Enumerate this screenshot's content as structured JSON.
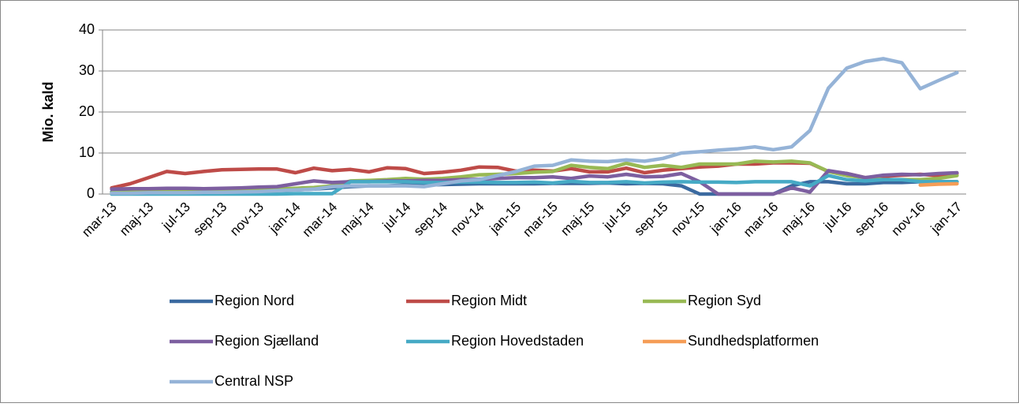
{
  "chart_data": {
    "type": "line",
    "y_label": "Mio. kald",
    "categories": [
      "mar-13",
      null,
      "maj-13",
      null,
      "jul-13",
      null,
      "sep-13",
      null,
      "nov-13",
      null,
      "jan-14",
      null,
      "mar-14",
      null,
      "maj-14",
      null,
      "jul-14",
      null,
      "sep-14",
      null,
      "nov-14",
      null,
      "jan-15",
      null,
      "mar-15",
      null,
      "maj-15",
      null,
      "jul-15",
      null,
      "sep-15",
      null,
      "nov-15",
      null,
      "jan-16",
      null,
      "mar-16",
      null,
      "maj-16",
      null,
      "jul-16",
      null,
      "sep-16",
      null,
      "nov-16",
      null,
      "jan-17"
    ],
    "ylim": [
      0,
      40
    ],
    "yticks": [
      0,
      10,
      20,
      30,
      40
    ],
    "grid": true,
    "series": [
      {
        "name": "Region Nord",
        "color": "#3b6aa0",
        "values": [
          0.5,
          0.5,
          0.6,
          0.6,
          0.6,
          0.7,
          0.7,
          0.8,
          0.8,
          0.9,
          1,
          1.2,
          1.5,
          1.8,
          2,
          2,
          2.2,
          2.2,
          2.3,
          2.4,
          2.5,
          2.5,
          2.5,
          2.5,
          2.6,
          2.6,
          2.6,
          2.7,
          2.5,
          2.6,
          2.5,
          2,
          0,
          0,
          0,
          0,
          0,
          2,
          3,
          3,
          2.5,
          2.5,
          2.8,
          2.8,
          3,
          3,
          3
        ]
      },
      {
        "name": "Region Midt",
        "color": "#be4b48",
        "values": [
          1.5,
          2.5,
          4,
          5.5,
          5,
          5.5,
          5.9,
          6,
          6.1,
          6.1,
          5.2,
          6.3,
          5.7,
          6,
          5.4,
          6.4,
          6.2,
          5,
          5.3,
          5.8,
          6.6,
          6.5,
          5.6,
          5.8,
          5.6,
          6.2,
          5.4,
          5.4,
          6.3,
          5.2,
          5.8,
          6.2,
          6.6,
          6.8,
          7.3,
          7.3,
          7.6,
          7.6,
          7.5,
          5.5,
          5,
          4,
          4.3,
          4.6,
          4.8,
          4.5,
          5
        ]
      },
      {
        "name": "Region Syd",
        "color": "#98b954",
        "values": [
          0.3,
          0.4,
          0.5,
          0.6,
          0.7,
          0.8,
          0.9,
          1,
          1.1,
          1.2,
          1.4,
          1.6,
          2,
          3.2,
          3.3,
          3.5,
          3.8,
          3.6,
          3.8,
          4.2,
          4.7,
          4.8,
          5,
          5.3,
          5.5,
          7,
          6.5,
          6.2,
          7.5,
          6.5,
          7,
          6.5,
          7.3,
          7.3,
          7.3,
          8,
          7.8,
          8,
          7.6,
          5.5,
          4.5,
          4,
          3.5,
          3.5,
          3.5,
          3.8,
          4.5
        ]
      },
      {
        "name": "Region Sjælland",
        "color": "#7d5fa0",
        "values": [
          1.2,
          1.3,
          1.3,
          1.4,
          1.4,
          1.3,
          1.4,
          1.5,
          1.7,
          1.8,
          2.5,
          3.2,
          2.8,
          3,
          3,
          3.2,
          3.2,
          3.3,
          3.3,
          3.5,
          3.6,
          3.8,
          4,
          4,
          4.2,
          3.8,
          4.4,
          4.2,
          4.8,
          4.2,
          4.3,
          5,
          3,
          0,
          0,
          0,
          0,
          1.5,
          0.5,
          5.7,
          5,
          4,
          4.6,
          4.8,
          4.7,
          5,
          5.2
        ]
      },
      {
        "name": "Region Hovedstaden",
        "color": "#46aac5",
        "values": [
          0,
          0,
          0,
          0,
          0,
          0,
          0,
          0,
          0,
          0,
          0.1,
          0.1,
          0.1,
          3,
          3,
          3,
          3,
          2.8,
          2.8,
          2.9,
          2.9,
          2.8,
          2.8,
          2.9,
          2.7,
          3.1,
          2.8,
          2.8,
          3,
          2.7,
          2.9,
          3,
          2.9,
          2.9,
          2.8,
          3,
          3,
          3,
          2,
          4.5,
          3.5,
          3.2,
          3.5,
          3.5,
          3,
          3,
          3
        ]
      },
      {
        "name": "Sundhedsplatformen",
        "color": "#f59d56",
        "values": [
          null,
          null,
          null,
          null,
          null,
          null,
          null,
          null,
          null,
          null,
          null,
          null,
          null,
          null,
          null,
          null,
          null,
          null,
          null,
          null,
          null,
          null,
          null,
          null,
          null,
          null,
          null,
          null,
          null,
          null,
          null,
          null,
          null,
          null,
          null,
          null,
          null,
          null,
          null,
          null,
          null,
          null,
          null,
          null,
          2.2,
          2.4,
          2.5
        ]
      },
      {
        "name": "Central NSP",
        "color": "#95b3d7",
        "values": [
          0.2,
          0.2,
          0.3,
          0.3,
          0.3,
          0.4,
          0.4,
          0.5,
          0.6,
          0.8,
          1,
          1.2,
          1.8,
          2,
          2,
          2,
          2,
          1.8,
          2.5,
          3.2,
          3.5,
          4.5,
          5.5,
          6.8,
          7,
          8.3,
          8,
          7.9,
          8.3,
          8,
          8.7,
          10,
          10.3,
          10.7,
          11,
          11.5,
          10.8,
          11.5,
          15.5,
          25.8,
          30.7,
          32.3,
          33,
          32,
          25.7,
          27.7,
          29.6
        ]
      }
    ]
  }
}
